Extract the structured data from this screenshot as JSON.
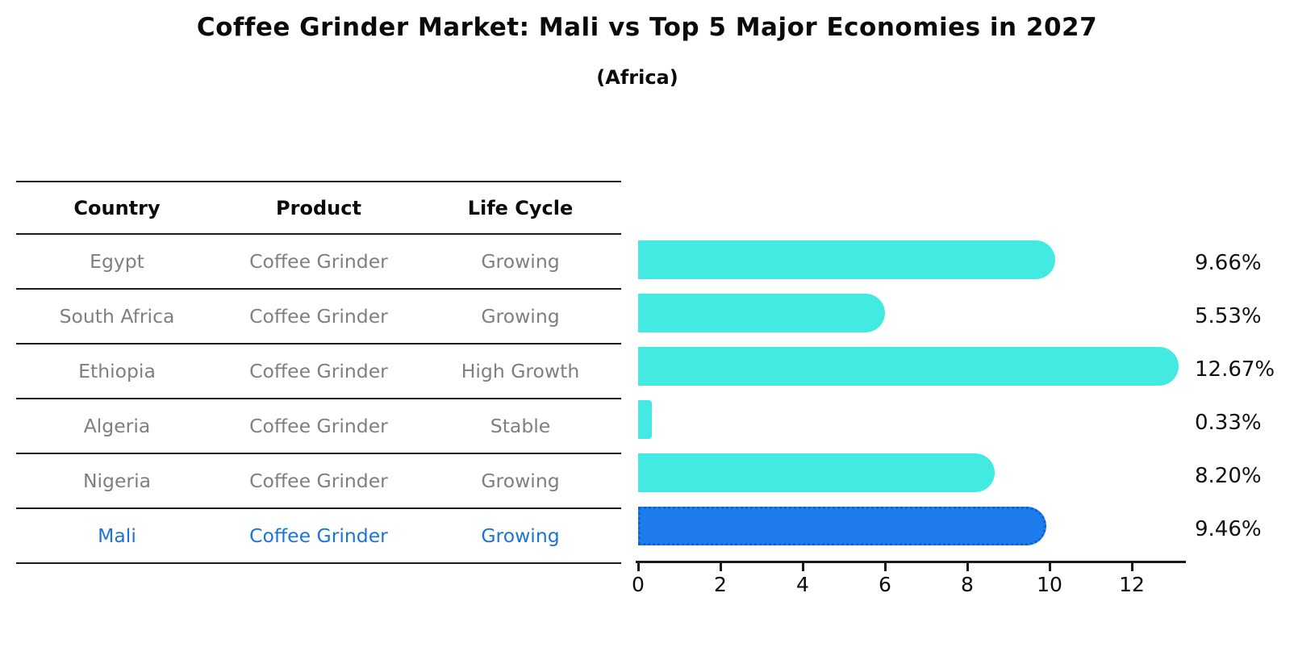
{
  "title": "Coffee Grinder Market: Mali vs Top 5 Major Economies in 2027",
  "subtitle": "(Africa)",
  "table": {
    "headers": [
      "Country",
      "Product",
      "Life Cycle"
    ],
    "rows": [
      {
        "country": "Egypt",
        "product": "Coffee Grinder",
        "life_cycle": "Growing",
        "highlight": false
      },
      {
        "country": "South Africa",
        "product": "Coffee Grinder",
        "life_cycle": "Growing",
        "highlight": false
      },
      {
        "country": "Ethiopia",
        "product": "Coffee Grinder",
        "life_cycle": "High Growth",
        "highlight": false
      },
      {
        "country": "Algeria",
        "product": "Coffee Grinder",
        "life_cycle": "Stable",
        "highlight": false
      },
      {
        "country": "Nigeria",
        "product": "Coffee Grinder",
        "life_cycle": "Growing",
        "highlight": false
      },
      {
        "country": "Mali",
        "product": "Coffee Grinder",
        "life_cycle": "Growing",
        "highlight": true
      }
    ]
  },
  "chart_data": {
    "type": "bar",
    "orientation": "horizontal",
    "title": "Coffee Grinder Market: Mali vs Top 5 Major Economies in 2027",
    "subtitle": "(Africa)",
    "categories": [
      "Egypt",
      "South Africa",
      "Ethiopia",
      "Algeria",
      "Nigeria",
      "Mali"
    ],
    "values": [
      9.66,
      5.53,
      12.67,
      0.33,
      8.2,
      9.46
    ],
    "value_labels": [
      "9.66%",
      "5.53%",
      "12.67%",
      "0.33%",
      "8.20%",
      "9.46%"
    ],
    "x_ticks": [
      0,
      2,
      4,
      6,
      8,
      10,
      12
    ],
    "xlim": [
      0,
      13.3
    ],
    "grid": false,
    "legend": "none",
    "highlight_index": 5,
    "bar_color": "#43EAE1",
    "highlight_color": "#1E7CEC",
    "highlight_border_color": "#0b62d9",
    "highlight_text_color": "#1b74d8",
    "text_color": "#7f7f7f",
    "axis_color": "#1a1a1a"
  }
}
